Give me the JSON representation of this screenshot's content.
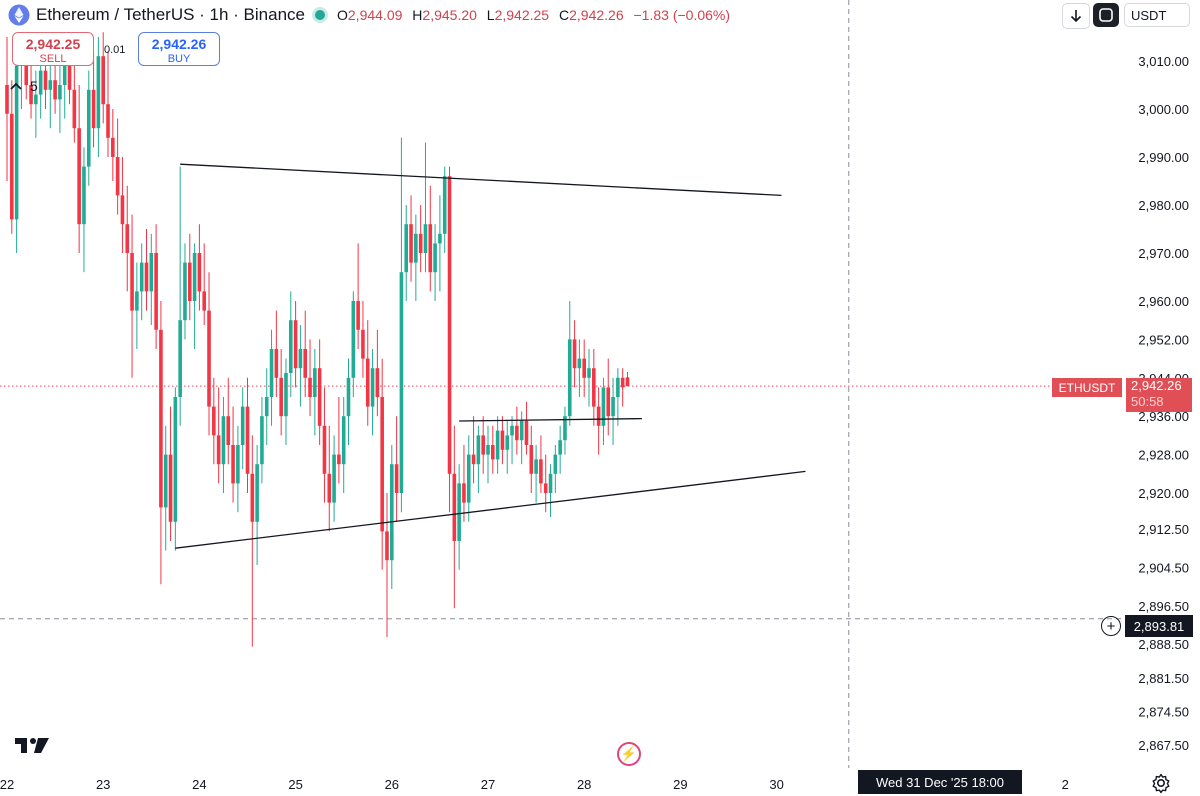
{
  "header": {
    "symbol_title": "Ethereum / TetherUS · 1h · Binance",
    "o_label": "O",
    "o_value": "2,944.09",
    "h_label": "H",
    "h_value": "2,945.20",
    "l_label": "L",
    "l_value": "2,942.25",
    "c_label": "C",
    "c_value": "2,942.26",
    "change": "−1.83 (−0.06%)",
    "status_color": "#26a69a"
  },
  "trade": {
    "sell_price": "2,942.25",
    "sell_label": "SELL",
    "spread": "0.01",
    "buy_price": "2,942.26",
    "buy_label": "BUY"
  },
  "interval": {
    "icon": "chevron-up-icon",
    "value": "5"
  },
  "toolbar": {
    "download_icon": "arrow-down-icon",
    "fullscreen_icon": "fullscreen-icon",
    "currency": "USDT"
  },
  "price_scale": {
    "symbol_tag": "ETHUSDT",
    "last_price": "2,942.26",
    "countdown": "50:58",
    "crosshair_price": "2,893.81"
  },
  "time_scale": {
    "crosshair_date": "Wed 31 Dec '25   18:00"
  },
  "colors": {
    "up": "#22ab94",
    "down": "#f23645",
    "last_price": "#e04e56"
  },
  "chart_data": {
    "type": "candlestick",
    "ylim": [
      2863.0,
      3020.0
    ],
    "yticks": [
      "3,010.00",
      "3,000.00",
      "2,990.00",
      "2,980.00",
      "2,970.00",
      "2,960.00",
      "2,952.00",
      "2,944.00",
      "2,936.00",
      "2,928.00",
      "2,920.00",
      "2,912.50",
      "2,904.50",
      "2,896.50",
      "2,888.50",
      "2,881.50",
      "2,874.50",
      "2,867.50"
    ],
    "ytick_values": [
      3010,
      3000,
      2990,
      2980,
      2970,
      2960,
      2952,
      2944,
      2936,
      2928,
      2920,
      2912.5,
      2904.5,
      2896.5,
      2888.5,
      2881.5,
      2874.5,
      2867.5
    ],
    "xticks": [
      "22",
      "23",
      "24",
      "25",
      "26",
      "27",
      "28",
      "29",
      "30",
      "2"
    ],
    "xtick_values": [
      22,
      23,
      24,
      25,
      26,
      27,
      28,
      29,
      30,
      33
    ],
    "xlim": [
      22,
      34.3
    ],
    "last_price": 2942.26,
    "crosshair": {
      "x": 30.75,
      "y": 2893.81
    },
    "trendlines": [
      {
        "name": "upper",
        "start": [
          23.8,
          2988.5
        ],
        "end": [
          30.05,
          2982.0
        ]
      },
      {
        "name": "lower",
        "start": [
          23.75,
          2908.5
        ],
        "end": [
          30.3,
          2924.5
        ]
      },
      {
        "name": "flag-top",
        "start": [
          26.7,
          2935.0
        ],
        "end": [
          28.6,
          2935.5
        ]
      }
    ],
    "candles": [
      {
        "x": 22.0,
        "o": 3005,
        "h": 3015,
        "l": 2985,
        "c": 2999
      },
      {
        "x": 22.05,
        "o": 2999,
        "h": 3006,
        "l": 2974,
        "c": 2977
      },
      {
        "x": 22.1,
        "o": 2977,
        "h": 3013,
        "l": 2970,
        "c": 3009
      },
      {
        "x": 22.15,
        "o": 3009,
        "h": 3016,
        "l": 3000,
        "c": 3011
      },
      {
        "x": 22.2,
        "o": 3011,
        "h": 3016,
        "l": 3002,
        "c": 3005
      },
      {
        "x": 22.25,
        "o": 3005,
        "h": 3010,
        "l": 2998,
        "c": 3001
      },
      {
        "x": 22.3,
        "o": 3001,
        "h": 3008,
        "l": 2994,
        "c": 3003
      },
      {
        "x": 22.35,
        "o": 3003,
        "h": 3012,
        "l": 2998,
        "c": 3008
      },
      {
        "x": 22.4,
        "o": 3008,
        "h": 3014,
        "l": 3000,
        "c": 3004
      },
      {
        "x": 22.45,
        "o": 3004,
        "h": 3011,
        "l": 2996,
        "c": 3006
      },
      {
        "x": 22.5,
        "o": 3006,
        "h": 3012,
        "l": 2999,
        "c": 3002
      },
      {
        "x": 22.55,
        "o": 3002,
        "h": 3009,
        "l": 2995,
        "c": 3005
      },
      {
        "x": 22.6,
        "o": 3005,
        "h": 3013,
        "l": 2998,
        "c": 3009
      },
      {
        "x": 22.65,
        "o": 3009,
        "h": 3015,
        "l": 3001,
        "c": 3004
      },
      {
        "x": 22.7,
        "o": 3004,
        "h": 3010,
        "l": 2993,
        "c": 2996
      },
      {
        "x": 22.75,
        "o": 2996,
        "h": 3005,
        "l": 2970,
        "c": 2976
      },
      {
        "x": 22.8,
        "o": 2976,
        "h": 2992,
        "l": 2966,
        "c": 2988
      },
      {
        "x": 22.85,
        "o": 2988,
        "h": 3008,
        "l": 2984,
        "c": 3004
      },
      {
        "x": 22.9,
        "o": 3004,
        "h": 3012,
        "l": 2992,
        "c": 2996
      },
      {
        "x": 22.95,
        "o": 2996,
        "h": 3015,
        "l": 2990,
        "c": 3011
      },
      {
        "x": 23.0,
        "o": 3011,
        "h": 3016,
        "l": 2997,
        "c": 3001
      },
      {
        "x": 23.05,
        "o": 3001,
        "h": 3012,
        "l": 2990,
        "c": 2994
      },
      {
        "x": 23.1,
        "o": 2994,
        "h": 3000,
        "l": 2985,
        "c": 2990
      },
      {
        "x": 23.15,
        "o": 2990,
        "h": 2998,
        "l": 2978,
        "c": 2982
      },
      {
        "x": 23.2,
        "o": 2982,
        "h": 2990,
        "l": 2970,
        "c": 2976
      },
      {
        "x": 23.25,
        "o": 2976,
        "h": 2984,
        "l": 2962,
        "c": 2970
      },
      {
        "x": 23.3,
        "o": 2970,
        "h": 2978,
        "l": 2944,
        "c": 2958
      },
      {
        "x": 23.35,
        "o": 2958,
        "h": 2968,
        "l": 2950,
        "c": 2962
      },
      {
        "x": 23.4,
        "o": 2962,
        "h": 2972,
        "l": 2956,
        "c": 2968
      },
      {
        "x": 23.45,
        "o": 2968,
        "h": 2975,
        "l": 2958,
        "c": 2962
      },
      {
        "x": 23.5,
        "o": 2962,
        "h": 2974,
        "l": 2955,
        "c": 2970
      },
      {
        "x": 23.55,
        "o": 2970,
        "h": 2976,
        "l": 2950,
        "c": 2954
      },
      {
        "x": 23.6,
        "o": 2954,
        "h": 2960,
        "l": 2901,
        "c": 2917
      },
      {
        "x": 23.65,
        "o": 2917,
        "h": 2934,
        "l": 2908,
        "c": 2928
      },
      {
        "x": 23.7,
        "o": 2928,
        "h": 2938,
        "l": 2910,
        "c": 2914
      },
      {
        "x": 23.75,
        "o": 2914,
        "h": 2942,
        "l": 2908,
        "c": 2940
      },
      {
        "x": 23.8,
        "o": 2940,
        "h": 2988,
        "l": 2934,
        "c": 2956
      },
      {
        "x": 23.85,
        "o": 2956,
        "h": 2972,
        "l": 2952,
        "c": 2968
      },
      {
        "x": 23.9,
        "o": 2968,
        "h": 2974,
        "l": 2956,
        "c": 2960
      },
      {
        "x": 23.95,
        "o": 2960,
        "h": 2972,
        "l": 2950,
        "c": 2970
      },
      {
        "x": 24.0,
        "o": 2970,
        "h": 2976,
        "l": 2958,
        "c": 2962
      },
      {
        "x": 24.05,
        "o": 2962,
        "h": 2972,
        "l": 2955,
        "c": 2958
      },
      {
        "x": 24.1,
        "o": 2958,
        "h": 2966,
        "l": 2932,
        "c": 2938
      },
      {
        "x": 24.15,
        "o": 2938,
        "h": 2944,
        "l": 2926,
        "c": 2932
      },
      {
        "x": 24.2,
        "o": 2932,
        "h": 2942,
        "l": 2922,
        "c": 2926
      },
      {
        "x": 24.25,
        "o": 2926,
        "h": 2940,
        "l": 2920,
        "c": 2936
      },
      {
        "x": 24.3,
        "o": 2936,
        "h": 2944,
        "l": 2926,
        "c": 2930
      },
      {
        "x": 24.35,
        "o": 2930,
        "h": 2938,
        "l": 2918,
        "c": 2922
      },
      {
        "x": 24.4,
        "o": 2922,
        "h": 2934,
        "l": 2916,
        "c": 2930
      },
      {
        "x": 24.45,
        "o": 2930,
        "h": 2942,
        "l": 2925,
        "c": 2938
      },
      {
        "x": 24.5,
        "o": 2938,
        "h": 2944,
        "l": 2920,
        "c": 2924
      },
      {
        "x": 24.55,
        "o": 2924,
        "h": 2932,
        "l": 2888,
        "c": 2914
      },
      {
        "x": 24.6,
        "o": 2914,
        "h": 2930,
        "l": 2905,
        "c": 2926
      },
      {
        "x": 24.65,
        "o": 2926,
        "h": 2940,
        "l": 2922,
        "c": 2936
      },
      {
        "x": 24.7,
        "o": 2936,
        "h": 2946,
        "l": 2930,
        "c": 2940
      },
      {
        "x": 24.75,
        "o": 2940,
        "h": 2954,
        "l": 2934,
        "c": 2950
      },
      {
        "x": 24.8,
        "o": 2950,
        "h": 2958,
        "l": 2940,
        "c": 2944
      },
      {
        "x": 24.85,
        "o": 2944,
        "h": 2950,
        "l": 2932,
        "c": 2936
      },
      {
        "x": 24.9,
        "o": 2936,
        "h": 2948,
        "l": 2930,
        "c": 2945
      },
      {
        "x": 24.95,
        "o": 2945,
        "h": 2962,
        "l": 2940,
        "c": 2956
      },
      {
        "x": 25.0,
        "o": 2956,
        "h": 2960,
        "l": 2942,
        "c": 2946
      },
      {
        "x": 25.05,
        "o": 2946,
        "h": 2955,
        "l": 2938,
        "c": 2950
      },
      {
        "x": 25.1,
        "o": 2950,
        "h": 2958,
        "l": 2940,
        "c": 2944
      },
      {
        "x": 25.15,
        "o": 2944,
        "h": 2952,
        "l": 2936,
        "c": 2940
      },
      {
        "x": 25.2,
        "o": 2940,
        "h": 2950,
        "l": 2932,
        "c": 2946
      },
      {
        "x": 25.25,
        "o": 2946,
        "h": 2952,
        "l": 2930,
        "c": 2934
      },
      {
        "x": 25.3,
        "o": 2934,
        "h": 2942,
        "l": 2918,
        "c": 2924
      },
      {
        "x": 25.35,
        "o": 2924,
        "h": 2934,
        "l": 2912,
        "c": 2918
      },
      {
        "x": 25.4,
        "o": 2918,
        "h": 2932,
        "l": 2914,
        "c": 2928
      },
      {
        "x": 25.45,
        "o": 2928,
        "h": 2940,
        "l": 2922,
        "c": 2926
      },
      {
        "x": 25.5,
        "o": 2926,
        "h": 2940,
        "l": 2920,
        "c": 2936
      },
      {
        "x": 25.55,
        "o": 2936,
        "h": 2948,
        "l": 2930,
        "c": 2944
      },
      {
        "x": 25.6,
        "o": 2944,
        "h": 2962,
        "l": 2940,
        "c": 2960
      },
      {
        "x": 25.65,
        "o": 2960,
        "h": 2972,
        "l": 2950,
        "c": 2954
      },
      {
        "x": 25.7,
        "o": 2954,
        "h": 2960,
        "l": 2944,
        "c": 2948
      },
      {
        "x": 25.75,
        "o": 2948,
        "h": 2956,
        "l": 2934,
        "c": 2938
      },
      {
        "x": 25.8,
        "o": 2938,
        "h": 2950,
        "l": 2932,
        "c": 2946
      },
      {
        "x": 25.85,
        "o": 2946,
        "h": 2954,
        "l": 2936,
        "c": 2940
      },
      {
        "x": 25.9,
        "o": 2940,
        "h": 2948,
        "l": 2904,
        "c": 2912
      },
      {
        "x": 25.95,
        "o": 2912,
        "h": 2920,
        "l": 2890,
        "c": 2906
      },
      {
        "x": 26.0,
        "o": 2906,
        "h": 2930,
        "l": 2900,
        "c": 2926
      },
      {
        "x": 26.05,
        "o": 2926,
        "h": 2936,
        "l": 2914,
        "c": 2920
      },
      {
        "x": 26.1,
        "o": 2920,
        "h": 2994,
        "l": 2916,
        "c": 2966
      },
      {
        "x": 26.15,
        "o": 2966,
        "h": 2980,
        "l": 2960,
        "c": 2976
      },
      {
        "x": 26.2,
        "o": 2976,
        "h": 2982,
        "l": 2964,
        "c": 2968
      },
      {
        "x": 26.25,
        "o": 2968,
        "h": 2978,
        "l": 2960,
        "c": 2974
      },
      {
        "x": 26.3,
        "o": 2974,
        "h": 2980,
        "l": 2966,
        "c": 2970
      },
      {
        "x": 26.35,
        "o": 2970,
        "h": 2993,
        "l": 2966,
        "c": 2976
      },
      {
        "x": 26.4,
        "o": 2976,
        "h": 2984,
        "l": 2962,
        "c": 2966
      },
      {
        "x": 26.45,
        "o": 2966,
        "h": 2976,
        "l": 2960,
        "c": 2972
      },
      {
        "x": 26.5,
        "o": 2972,
        "h": 2982,
        "l": 2962,
        "c": 2974
      },
      {
        "x": 26.55,
        "o": 2974,
        "h": 2988,
        "l": 2970,
        "c": 2986
      },
      {
        "x": 26.6,
        "o": 2986,
        "h": 2988,
        "l": 2916,
        "c": 2924
      },
      {
        "x": 26.65,
        "o": 2924,
        "h": 2934,
        "l": 2896,
        "c": 2910
      },
      {
        "x": 26.7,
        "o": 2910,
        "h": 2926,
        "l": 2904,
        "c": 2922
      },
      {
        "x": 26.75,
        "o": 2922,
        "h": 2930,
        "l": 2914,
        "c": 2918
      },
      {
        "x": 26.8,
        "o": 2918,
        "h": 2932,
        "l": 2914,
        "c": 2928
      },
      {
        "x": 26.85,
        "o": 2928,
        "h": 2936,
        "l": 2922,
        "c": 2926
      },
      {
        "x": 26.9,
        "o": 2926,
        "h": 2934,
        "l": 2920,
        "c": 2932
      },
      {
        "x": 26.95,
        "o": 2932,
        "h": 2936,
        "l": 2924,
        "c": 2928
      },
      {
        "x": 27.0,
        "o": 2928,
        "h": 2934,
        "l": 2922,
        "c": 2930
      },
      {
        "x": 27.05,
        "o": 2930,
        "h": 2934,
        "l": 2924,
        "c": 2927
      },
      {
        "x": 27.1,
        "o": 2927,
        "h": 2936,
        "l": 2924,
        "c": 2933
      },
      {
        "x": 27.15,
        "o": 2933,
        "h": 2936,
        "l": 2926,
        "c": 2929
      },
      {
        "x": 27.2,
        "o": 2929,
        "h": 2935,
        "l": 2924,
        "c": 2932
      },
      {
        "x": 27.25,
        "o": 2932,
        "h": 2936,
        "l": 2926,
        "c": 2934
      },
      {
        "x": 27.3,
        "o": 2934,
        "h": 2938,
        "l": 2928,
        "c": 2931
      },
      {
        "x": 27.35,
        "o": 2931,
        "h": 2937,
        "l": 2926,
        "c": 2935
      },
      {
        "x": 27.4,
        "o": 2935,
        "h": 2939,
        "l": 2928,
        "c": 2930
      },
      {
        "x": 27.45,
        "o": 2930,
        "h": 2934,
        "l": 2920,
        "c": 2924
      },
      {
        "x": 27.5,
        "o": 2924,
        "h": 2930,
        "l": 2918,
        "c": 2927
      },
      {
        "x": 27.55,
        "o": 2927,
        "h": 2932,
        "l": 2920,
        "c": 2922
      },
      {
        "x": 27.6,
        "o": 2922,
        "h": 2928,
        "l": 2916,
        "c": 2920
      },
      {
        "x": 27.65,
        "o": 2920,
        "h": 2926,
        "l": 2915,
        "c": 2924
      },
      {
        "x": 27.7,
        "o": 2924,
        "h": 2930,
        "l": 2920,
        "c": 2928
      },
      {
        "x": 27.75,
        "o": 2928,
        "h": 2934,
        "l": 2924,
        "c": 2931
      },
      {
        "x": 27.8,
        "o": 2931,
        "h": 2938,
        "l": 2928,
        "c": 2936
      },
      {
        "x": 27.85,
        "o": 2936,
        "h": 2960,
        "l": 2934,
        "c": 2952
      },
      {
        "x": 27.9,
        "o": 2952,
        "h": 2956,
        "l": 2942,
        "c": 2946
      },
      {
        "x": 27.95,
        "o": 2946,
        "h": 2952,
        "l": 2940,
        "c": 2948
      },
      {
        "x": 28.0,
        "o": 2948,
        "h": 2952,
        "l": 2940,
        "c": 2944
      },
      {
        "x": 28.05,
        "o": 2944,
        "h": 2950,
        "l": 2938,
        "c": 2946
      },
      {
        "x": 28.1,
        "o": 2946,
        "h": 2950,
        "l": 2934,
        "c": 2938
      },
      {
        "x": 28.15,
        "o": 2938,
        "h": 2942,
        "l": 2928,
        "c": 2934
      },
      {
        "x": 28.2,
        "o": 2934,
        "h": 2944,
        "l": 2930,
        "c": 2942
      },
      {
        "x": 28.25,
        "o": 2942,
        "h": 2948,
        "l": 2932,
        "c": 2936
      },
      {
        "x": 28.3,
        "o": 2936,
        "h": 2944,
        "l": 2930,
        "c": 2940
      },
      {
        "x": 28.35,
        "o": 2940,
        "h": 2946,
        "l": 2934,
        "c": 2944
      },
      {
        "x": 28.4,
        "o": 2944,
        "h": 2946,
        "l": 2938,
        "c": 2942
      },
      {
        "x": 28.45,
        "o": 2944.09,
        "h": 2945.2,
        "l": 2942.25,
        "c": 2942.26
      }
    ]
  }
}
